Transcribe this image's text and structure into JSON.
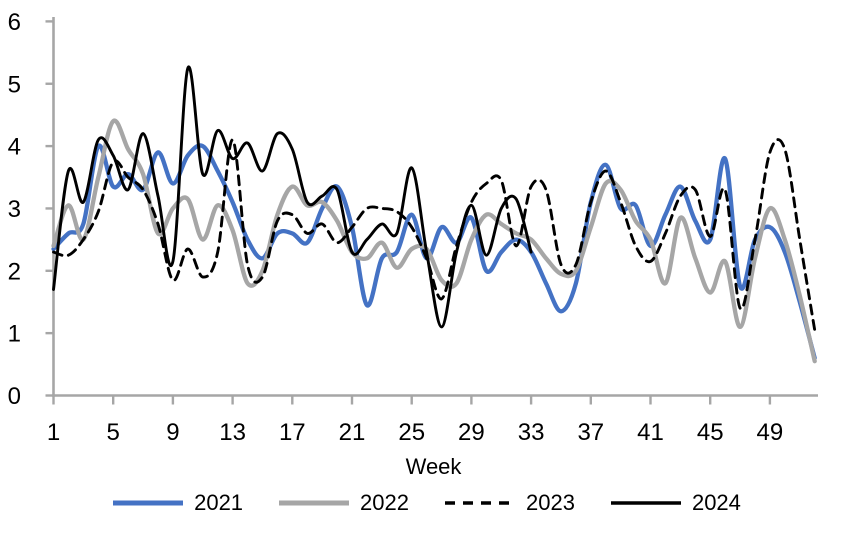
{
  "chart_data": {
    "type": "line",
    "title": "",
    "xlabel": "Week",
    "ylabel": "",
    "xlim": [
      1,
      52
    ],
    "ylim": [
      0,
      6
    ],
    "grid": false,
    "legend_position": "bottom",
    "axis_color": "#a6a6a6",
    "text_color": "#000000",
    "x_ticks": [
      1,
      5,
      9,
      13,
      17,
      21,
      25,
      29,
      33,
      37,
      41,
      45,
      49
    ],
    "y_ticks": [
      0,
      1,
      2,
      3,
      4,
      5,
      6
    ],
    "x_start_week": 1,
    "series": [
      {
        "name": "2021",
        "color": "#4472c4",
        "style": "solid",
        "start_week": 1,
        "values": [
          2.35,
          2.6,
          2.75,
          4.0,
          3.35,
          3.55,
          3.3,
          3.9,
          3.4,
          3.85,
          4.0,
          3.6,
          3.1,
          2.5,
          2.2,
          2.6,
          2.6,
          2.45,
          3.0,
          3.35,
          2.7,
          1.45,
          2.2,
          2.3,
          2.9,
          2.2,
          2.7,
          2.45,
          2.85,
          2.0,
          2.3,
          2.5,
          2.3,
          1.8,
          1.35,
          1.8,
          3.1,
          3.7,
          3.0,
          3.05,
          2.4,
          2.9,
          3.35,
          2.8,
          2.5,
          3.8,
          1.75,
          2.5,
          2.7,
          2.3,
          1.5,
          0.6
        ]
      },
      {
        "name": "2022",
        "color": "#a6a6a6",
        "style": "solid",
        "start_week": 1,
        "values": [
          2.4,
          3.05,
          2.5,
          3.5,
          4.4,
          3.95,
          3.55,
          2.6,
          3.0,
          3.15,
          2.5,
          3.05,
          2.65,
          1.8,
          2.0,
          2.9,
          3.35,
          3.05,
          3.1,
          2.8,
          2.3,
          2.2,
          2.45,
          2.05,
          2.35,
          2.35,
          1.85,
          1.8,
          2.5,
          2.9,
          2.75,
          2.6,
          2.5,
          2.2,
          1.95,
          2.0,
          2.7,
          3.4,
          3.3,
          2.8,
          2.5,
          1.8,
          2.85,
          2.2,
          1.65,
          2.15,
          1.1,
          2.2,
          3.0,
          2.5,
          1.6,
          0.55
        ]
      },
      {
        "name": "2023",
        "color": "#000000",
        "style": "dashed",
        "start_week": 1,
        "values": [
          2.3,
          2.25,
          2.5,
          2.95,
          3.75,
          3.5,
          3.3,
          2.75,
          1.85,
          2.35,
          1.9,
          2.3,
          4.1,
          2.1,
          1.9,
          2.8,
          2.9,
          2.6,
          2.75,
          2.45,
          2.7,
          3.0,
          3.0,
          2.95,
          2.7,
          2.2,
          1.55,
          2.4,
          3.1,
          3.4,
          3.45,
          2.4,
          3.35,
          3.3,
          2.1,
          2.1,
          3.1,
          3.6,
          3.1,
          2.4,
          2.15,
          2.6,
          3.2,
          3.3,
          2.55,
          3.3,
          1.4,
          2.5,
          3.9,
          3.95,
          2.5,
          1.05
        ]
      },
      {
        "name": "2024",
        "color": "#000000",
        "style": "solid",
        "start_week": 1,
        "values": [
          1.7,
          3.6,
          3.1,
          4.1,
          3.85,
          3.3,
          4.2,
          3.2,
          2.15,
          5.25,
          3.55,
          4.25,
          3.8,
          4.05,
          3.6,
          4.2,
          3.95,
          3.1,
          3.2,
          3.3,
          2.3,
          2.5,
          2.75,
          2.6,
          3.65,
          2.3,
          1.1,
          2.3,
          3.05,
          2.25,
          3.0,
          3.15,
          2.3
        ]
      }
    ]
  }
}
